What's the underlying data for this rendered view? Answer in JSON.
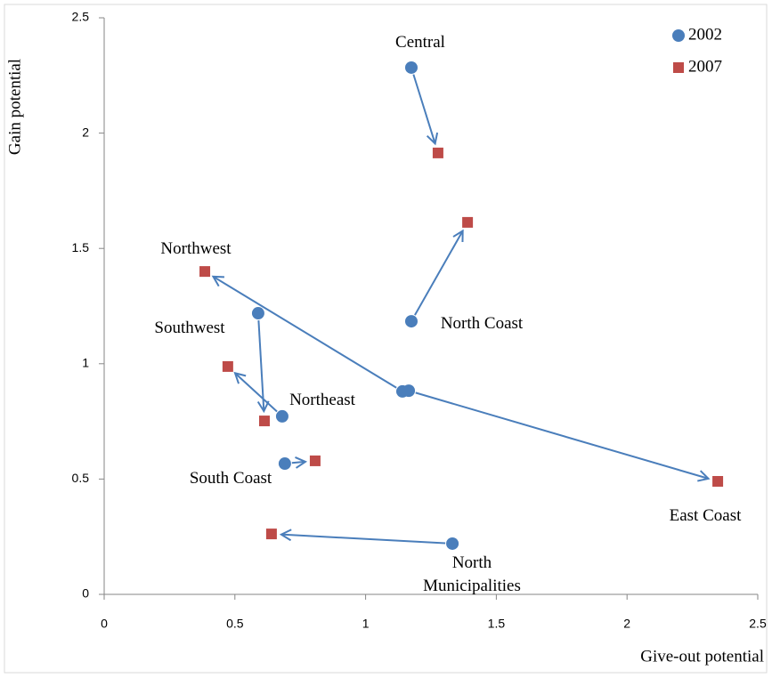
{
  "chart_data": {
    "type": "scatter",
    "x_label": "Give-out potential",
    "y_label": "Gain potential",
    "categories": [
      "Central",
      "North Coast",
      "Northwest",
      "Southwest",
      "Northeast",
      "South Coast",
      "East Coast",
      "North Municipalities"
    ],
    "series": [
      {
        "name": "2002",
        "color": "#4a7ebb",
        "marker": "circle",
        "x": [
          1.175,
          1.175,
          1.141,
          0.589,
          0.681,
          0.691,
          1.165,
          1.332
        ],
        "values": [
          2.284,
          1.184,
          0.88,
          1.219,
          0.772,
          0.567,
          0.883,
          0.22
        ]
      },
      {
        "name": "2007",
        "color": "#be4b48",
        "marker": "square",
        "x": [
          1.277,
          1.39,
          0.385,
          0.613,
          0.473,
          0.807,
          2.347,
          0.64
        ],
        "values": [
          1.914,
          1.613,
          1.4,
          0.752,
          0.988,
          0.579,
          0.49,
          0.262
        ]
      }
    ],
    "xlim": [
      0,
      2.5
    ],
    "ylim": [
      0,
      2.5
    ],
    "xticks": [
      0,
      0.5,
      1,
      1.5,
      2,
      2.5
    ],
    "yticks": [
      0,
      0.5,
      1,
      1.5,
      2,
      2.5
    ],
    "grid": false,
    "legend": "top-right",
    "arrow_color": "#4a7ebb"
  }
}
